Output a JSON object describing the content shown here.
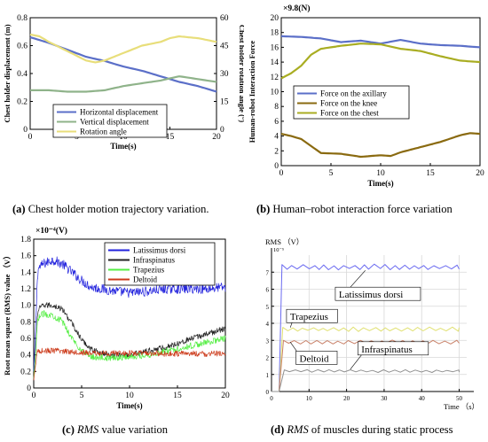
{
  "colors": {
    "blue": "#5b6fc8",
    "green": "#8fb38a",
    "yellow": "#e8de7a",
    "brown": "#8a6a10",
    "olive": "#a9ad22",
    "gold": "#c8b43c",
    "lat_blue": "#2222dd",
    "infra_dark": "#222222",
    "trap_green": "#55ee44",
    "delt_red": "#cc3a1a",
    "static_blue": "#6a6af0",
    "static_yellow": "#e0e070",
    "static_red": "#c9826a",
    "static_gray": "#909090",
    "grid": "#d8d8d8"
  },
  "captions": {
    "a_letter": "(a)",
    "a_text": "Chest holder motion trajectory variation.",
    "b_letter": "(b)",
    "b_text": "Human–robot interaction force variation",
    "c_letter": "(c)",
    "c_italic": "RMS",
    "c_text": "value variation",
    "d_letter": "(d)",
    "d_italic": "RMS",
    "d_text": "of muscles during static process"
  },
  "chart_data": [
    {
      "id": "a",
      "type": "line",
      "xlabel": "Time(s)",
      "ylabel": "Chest holder displacement (m)",
      "y2label": "Chest holder rotation angle (°)",
      "xlim": [
        0,
        20
      ],
      "ylim": [
        0,
        0.8
      ],
      "y2lim": [
        0,
        60
      ],
      "xticks": [
        0,
        5,
        10,
        15,
        20
      ],
      "yticks": [
        0,
        0.2,
        0.4,
        0.6,
        0.8
      ],
      "yticklabels": [
        "0",
        "0.2",
        "0.4",
        "0.6",
        "0.8"
      ],
      "y2ticks": [
        0,
        15,
        30,
        45,
        60
      ],
      "legend_position": "bottom-left",
      "series": [
        {
          "name": "Horizontal displacement",
          "axis": "left",
          "color_key": "blue",
          "x": [
            0,
            2,
            4,
            6,
            8,
            10,
            12,
            14,
            16,
            18,
            20
          ],
          "y": [
            0.66,
            0.62,
            0.57,
            0.52,
            0.49,
            0.45,
            0.42,
            0.38,
            0.34,
            0.31,
            0.27
          ]
        },
        {
          "name": "Vertical displacement",
          "axis": "left",
          "color_key": "green",
          "x": [
            0,
            2,
            4,
            6,
            8,
            10,
            12,
            14,
            16,
            18,
            20
          ],
          "y": [
            0.28,
            0.28,
            0.27,
            0.27,
            0.28,
            0.31,
            0.33,
            0.35,
            0.38,
            0.36,
            0.34
          ]
        },
        {
          "name": "Rotation angle",
          "axis": "right",
          "color_key": "yellow",
          "x": [
            0,
            1,
            2,
            4,
            6,
            7,
            8,
            10,
            12,
            14,
            15,
            16,
            18,
            20
          ],
          "y": [
            51,
            50,
            47,
            42,
            37,
            36,
            37,
            41,
            45,
            47,
            49,
            50,
            49,
            47
          ]
        }
      ]
    },
    {
      "id": "b",
      "type": "line",
      "xlabel": "Time(s)",
      "ylabel": "Human-robot Interaction Force",
      "unit_label": "×9.8(N)",
      "xlim": [
        0,
        20
      ],
      "ylim": [
        0,
        20
      ],
      "xticks": [
        0,
        5,
        10,
        15,
        20
      ],
      "yticks": [
        0,
        2,
        4,
        6,
        8,
        10,
        12,
        14,
        16,
        18,
        20
      ],
      "legend_position": "center-left",
      "series": [
        {
          "name": "Force on the axillary",
          "color_key": "blue",
          "x": [
            0,
            2,
            4,
            6,
            8,
            10,
            12,
            14,
            16,
            18,
            20
          ],
          "y": [
            17.5,
            17.4,
            17.2,
            16.7,
            16.9,
            16.5,
            17.0,
            16.5,
            16.3,
            16.2,
            16.0
          ]
        },
        {
          "name": "Force on the knee",
          "color_key": "brown",
          "x": [
            0,
            1,
            2,
            4,
            6,
            8,
            10,
            11,
            12,
            14,
            16,
            18,
            19,
            20
          ],
          "y": [
            4.3,
            4.0,
            3.6,
            1.7,
            1.6,
            1.2,
            1.4,
            1.3,
            1.8,
            2.5,
            3.2,
            4.1,
            4.4,
            4.3
          ]
        },
        {
          "name": "Force on the chest",
          "color_key": "olive",
          "x": [
            0,
            1,
            2,
            3,
            4,
            6,
            8,
            10,
            12,
            14,
            16,
            18,
            20
          ],
          "y": [
            11.8,
            12.5,
            13.5,
            15.0,
            15.8,
            16.2,
            16.5,
            16.4,
            15.8,
            15.5,
            14.8,
            14.2,
            14.0
          ]
        }
      ]
    },
    {
      "id": "c",
      "type": "line",
      "xlabel": "Time(s)",
      "ylabel": "Root mean square (RMS) value （V）",
      "unit_label": "×10⁻⁴(V)",
      "xlim": [
        0,
        20
      ],
      "ylim": [
        0,
        1.8
      ],
      "xticks": [
        0,
        5,
        10,
        15,
        20
      ],
      "yticks": [
        0,
        0.2,
        0.4,
        0.6,
        0.8,
        1.0,
        1.2,
        1.4,
        1.6,
        1.8
      ],
      "yticklabels": [
        "0",
        "0.2",
        "0.4",
        "0.6",
        "0.8",
        "1.0",
        "1.2",
        "1.4",
        "1.6",
        "1.8"
      ],
      "legend_position": "top-right",
      "series": [
        {
          "name": "Latissimus dorsi",
          "color_key": "lat_blue",
          "noise": 0.06,
          "x": [
            0,
            0.5,
            1,
            2,
            3,
            4,
            5,
            6,
            8,
            10,
            12,
            14,
            16,
            18,
            20
          ],
          "y": [
            1.0,
            1.45,
            1.5,
            1.55,
            1.5,
            1.4,
            1.3,
            1.22,
            1.18,
            1.15,
            1.17,
            1.2,
            1.2,
            1.2,
            1.22
          ]
        },
        {
          "name": "Infraspinatus",
          "color_key": "infra_dark",
          "noise": 0.035,
          "x": [
            0,
            0.5,
            1,
            2,
            3,
            4,
            5,
            6,
            7,
            8,
            10,
            12,
            14,
            16,
            18,
            20
          ],
          "y": [
            0.6,
            0.95,
            1.0,
            1.0,
            0.95,
            0.78,
            0.58,
            0.47,
            0.42,
            0.4,
            0.4,
            0.45,
            0.5,
            0.58,
            0.65,
            0.72
          ]
        },
        {
          "name": "Trapezius",
          "color_key": "trap_green",
          "noise": 0.04,
          "x": [
            0,
            0.5,
            1,
            2,
            3,
            4,
            5,
            6,
            8,
            10,
            12,
            14,
            16,
            18,
            20
          ],
          "y": [
            0.55,
            0.85,
            0.9,
            0.88,
            0.8,
            0.6,
            0.45,
            0.38,
            0.36,
            0.38,
            0.4,
            0.45,
            0.5,
            0.55,
            0.6
          ]
        },
        {
          "name": "Deltoid",
          "color_key": "delt_red",
          "noise": 0.035,
          "x": [
            0,
            1,
            2,
            4,
            6,
            8,
            10,
            12,
            14,
            16,
            18,
            20
          ],
          "y": [
            0.45,
            0.45,
            0.45,
            0.44,
            0.42,
            0.42,
            0.42,
            0.42,
            0.41,
            0.42,
            0.41,
            0.42
          ]
        }
      ]
    },
    {
      "id": "d",
      "type": "line",
      "ylabel": "RMS （V）",
      "xlabel": "Time （s）",
      "unit_label": "10⁻⁵",
      "xlim": [
        0,
        52
      ],
      "ylim": [
        0,
        8
      ],
      "xticks": [
        0,
        10,
        20,
        30,
        40,
        50
      ],
      "yticks": [
        0,
        1,
        2,
        3,
        4,
        5,
        6,
        7
      ],
      "series": [
        {
          "name": "Latissimus dorsi",
          "color_key": "static_blue",
          "level": 7.3,
          "amp": 0.14,
          "rise_end": 2.8
        },
        {
          "name": "Trapezius",
          "color_key": "static_yellow",
          "level": 3.65,
          "amp": 0.11,
          "rise_end": 3.0
        },
        {
          "name": "Deltoid",
          "color_key": "static_red",
          "level": 2.9,
          "amp": 0.1,
          "rise_end": 3.2
        },
        {
          "name": "Infraspinatus",
          "color_key": "static_gray",
          "level": 1.2,
          "amp": 0.07,
          "rise_end": 3.4
        }
      ]
    }
  ]
}
